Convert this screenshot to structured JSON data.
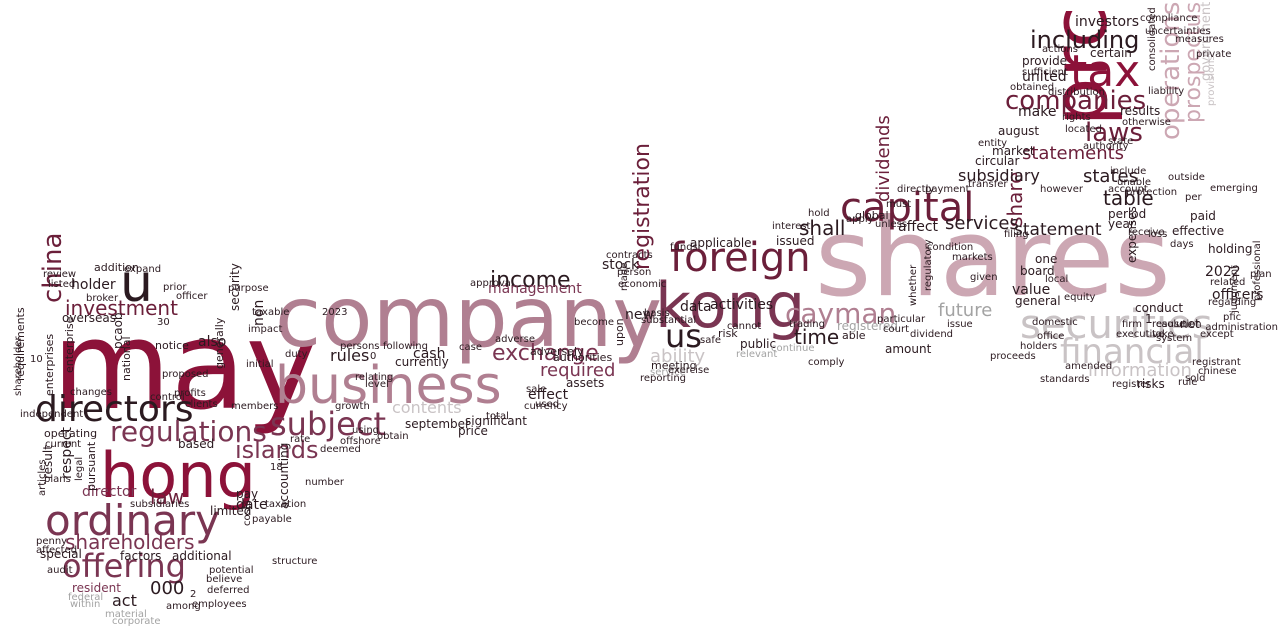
{
  "palette": {
    "dark": "#8c1239",
    "maroon": "#6b1f3a",
    "plum": "#7a3552",
    "mauve": "#b07f91",
    "rose": "#cca7b3",
    "gray": "#a3a3a3",
    "silver": "#c9c3c5",
    "ink": "#2b1a20"
  },
  "words": [
    {
      "text": "may",
      "color": "dark"
    },
    {
      "text": "shares",
      "color": "rose"
    },
    {
      "text": "company",
      "color": "mauve"
    },
    {
      "text": "business",
      "color": "mauve"
    },
    {
      "text": "kong",
      "color": "plum"
    },
    {
      "text": "prc",
      "color": "dark"
    },
    {
      "text": "hong",
      "color": "dark"
    },
    {
      "text": "ordinary",
      "color": "plum"
    },
    {
      "text": "directors",
      "color": "ink"
    },
    {
      "text": "u",
      "color": "ink"
    },
    {
      "text": "tax",
      "color": "dark"
    },
    {
      "text": "capital",
      "color": "maroon"
    },
    {
      "text": "foreign",
      "color": "maroon"
    },
    {
      "text": "securities",
      "color": "silver"
    },
    {
      "text": "financial",
      "color": "silver"
    },
    {
      "text": "companies",
      "color": "maroon"
    },
    {
      "text": "laws",
      "color": "maroon"
    },
    {
      "text": "subject",
      "color": "plum"
    },
    {
      "text": "regulations",
      "color": "plum"
    },
    {
      "text": "offering",
      "color": "plum"
    },
    {
      "text": "us",
      "color": "ink"
    },
    {
      "text": "operations",
      "color": "rose"
    },
    {
      "text": "cayman",
      "color": "mauve"
    },
    {
      "text": "shareholders",
      "color": "plum"
    },
    {
      "text": "china",
      "color": "maroon"
    },
    {
      "text": "islands",
      "color": "plum"
    },
    {
      "text": "registration",
      "color": "maroon"
    },
    {
      "text": "including",
      "color": "ink"
    },
    {
      "text": "prospectus",
      "color": "rose"
    },
    {
      "text": "statements",
      "color": "maroon"
    },
    {
      "text": "exchange",
      "color": "plum"
    },
    {
      "text": "income",
      "color": "ink"
    },
    {
      "text": "investment",
      "color": "maroon"
    },
    {
      "text": "share",
      "color": "maroon"
    },
    {
      "text": "dividends",
      "color": "maroon"
    },
    {
      "text": "information",
      "color": "silver"
    },
    {
      "text": "ability",
      "color": "silver"
    },
    {
      "text": "statement",
      "color": "ink"
    },
    {
      "text": "law",
      "color": "maroon"
    },
    {
      "text": "states",
      "color": "ink"
    },
    {
      "text": "time",
      "color": "ink"
    },
    {
      "text": "future",
      "color": "gray"
    },
    {
      "text": "table",
      "color": "ink"
    },
    {
      "text": "shall",
      "color": "ink"
    },
    {
      "text": "services",
      "color": "ink"
    },
    {
      "text": "subsidiary",
      "color": "ink"
    },
    {
      "text": "management",
      "color": "plum"
    },
    {
      "text": "required",
      "color": "plum"
    },
    {
      "text": "contents",
      "color": "silver"
    },
    {
      "text": "act",
      "color": "ink"
    },
    {
      "text": "000",
      "color": "ink"
    },
    {
      "text": "director",
      "color": "plum"
    },
    {
      "text": "rules",
      "color": "ink"
    },
    {
      "text": "investors",
      "color": "ink"
    },
    {
      "text": "united",
      "color": "ink"
    },
    {
      "text": "make",
      "color": "ink"
    },
    {
      "text": "results",
      "color": "ink"
    },
    {
      "text": "market",
      "color": "ink"
    },
    {
      "text": "august",
      "color": "ink"
    },
    {
      "text": "circular",
      "color": "ink"
    },
    {
      "text": "provide",
      "color": "ink"
    },
    {
      "text": "certain",
      "color": "ink"
    },
    {
      "text": "government",
      "color": "silver"
    },
    {
      "text": "officers",
      "color": "ink"
    },
    {
      "text": "2022",
      "color": "ink"
    },
    {
      "text": "holding",
      "color": "ink"
    },
    {
      "text": "related",
      "color": "ink"
    },
    {
      "text": "regarding",
      "color": "ink"
    },
    {
      "text": "effective",
      "color": "ink"
    },
    {
      "text": "paid",
      "color": "ink"
    },
    {
      "text": "per",
      "color": "ink"
    },
    {
      "text": "period",
      "color": "ink"
    },
    {
      "text": "year",
      "color": "ink"
    },
    {
      "text": "conduct",
      "color": "ink"
    },
    {
      "text": "board",
      "color": "ink"
    },
    {
      "text": "general",
      "color": "ink"
    },
    {
      "text": "value",
      "color": "ink"
    },
    {
      "text": "one",
      "color": "ink"
    },
    {
      "text": "amount",
      "color": "ink"
    },
    {
      "text": "affect",
      "color": "ink"
    },
    {
      "text": "applicable",
      "color": "ink"
    },
    {
      "text": "activities",
      "color": "ink"
    },
    {
      "text": "data",
      "color": "ink"
    },
    {
      "text": "issued",
      "color": "ink"
    },
    {
      "text": "public",
      "color": "ink"
    },
    {
      "text": "registered",
      "color": "gray"
    },
    {
      "text": "new",
      "color": "ink"
    },
    {
      "text": "stock",
      "color": "ink"
    },
    {
      "text": "effect",
      "color": "ink"
    },
    {
      "text": "assets",
      "color": "ink"
    },
    {
      "text": "cash",
      "color": "ink"
    },
    {
      "text": "currently",
      "color": "ink"
    },
    {
      "text": "price",
      "color": "ink"
    },
    {
      "text": "significant",
      "color": "ink"
    },
    {
      "text": "september",
      "color": "ink"
    },
    {
      "text": "offshore",
      "color": "ink"
    },
    {
      "text": "deemed",
      "color": "ink"
    },
    {
      "text": "growth",
      "color": "ink"
    },
    {
      "text": "accounting",
      "color": "ink"
    },
    {
      "text": "taxable",
      "color": "ink"
    },
    {
      "text": "non",
      "color": "ink"
    },
    {
      "text": "security",
      "color": "ink"
    },
    {
      "text": "pay",
      "color": "ink"
    },
    {
      "text": "date",
      "color": "ink"
    },
    {
      "text": "limited",
      "color": "ink"
    },
    {
      "text": "based",
      "color": "ink"
    },
    {
      "text": "additional",
      "color": "ink"
    },
    {
      "text": "factors",
      "color": "ink"
    },
    {
      "text": "special",
      "color": "ink"
    },
    {
      "text": "resident",
      "color": "plum"
    },
    {
      "text": "federal",
      "color": "gray"
    },
    {
      "text": "within",
      "color": "gray"
    },
    {
      "text": "material",
      "color": "gray"
    },
    {
      "text": "operating",
      "color": "ink"
    },
    {
      "text": "current",
      "color": "ink"
    },
    {
      "text": "holder",
      "color": "ink"
    },
    {
      "text": "overseas",
      "color": "ink"
    },
    {
      "text": "requirements",
      "color": "ink"
    },
    {
      "text": "enterprises",
      "color": "ink"
    },
    {
      "text": "respect",
      "color": "ink"
    },
    {
      "text": "result",
      "color": "ink"
    },
    {
      "text": "pursuant",
      "color": "ink"
    },
    {
      "text": "legal",
      "color": "ink"
    },
    {
      "text": "pcaob",
      "color": "ink"
    },
    {
      "text": "national",
      "color": "ink"
    },
    {
      "text": "also",
      "color": "ink"
    },
    {
      "text": "notice",
      "color": "ink"
    },
    {
      "text": "generally",
      "color": "ink"
    },
    {
      "text": "addition",
      "color": "ink"
    },
    {
      "text": "broker",
      "color": "ink"
    },
    {
      "text": "control",
      "color": "ink"
    },
    {
      "text": "enterprise",
      "color": "ink"
    },
    {
      "text": "articles",
      "color": "ink"
    },
    {
      "text": "30",
      "color": "ink"
    },
    {
      "text": "net",
      "color": "ink"
    },
    {
      "text": "pfic",
      "color": "ink"
    },
    {
      "text": "risks",
      "color": "ink"
    },
    {
      "text": "executive",
      "color": "ink"
    },
    {
      "text": "adversely",
      "color": "ink"
    },
    {
      "text": "authorities",
      "color": "ink"
    },
    {
      "text": "person",
      "color": "ink"
    },
    {
      "text": "upon",
      "color": "ink"
    },
    {
      "text": "made",
      "color": "ink"
    },
    {
      "text": "risk",
      "color": "ink"
    },
    {
      "text": "safe",
      "color": "ink"
    },
    {
      "text": "meeting",
      "color": "ink"
    },
    {
      "text": "service",
      "color": "gray"
    },
    {
      "text": "relevant",
      "color": "gray"
    },
    {
      "text": "continue",
      "color": "gray"
    },
    {
      "text": "able",
      "color": "ink"
    },
    {
      "text": "comply",
      "color": "ink"
    },
    {
      "text": "trading",
      "color": "ink"
    },
    {
      "text": "court",
      "color": "ink"
    },
    {
      "text": "interest",
      "color": "ink"
    },
    {
      "text": "global",
      "color": "ink"
    },
    {
      "text": "must",
      "color": "ink"
    },
    {
      "text": "whether",
      "color": "ink"
    },
    {
      "text": "regulatory",
      "color": "ink"
    },
    {
      "text": "markets",
      "color": "ink"
    },
    {
      "text": "payment",
      "color": "ink"
    },
    {
      "text": "transfer",
      "color": "ink"
    },
    {
      "text": "however",
      "color": "ink"
    },
    {
      "text": "rate",
      "color": "ink"
    },
    {
      "text": "18",
      "color": "ink"
    },
    {
      "text": "costs",
      "color": "ink"
    },
    {
      "text": "impact",
      "color": "ink"
    },
    {
      "text": "members",
      "color": "ink"
    },
    {
      "text": "clients",
      "color": "ink"
    },
    {
      "text": "independent",
      "color": "ink"
    },
    {
      "text": "review",
      "color": "ink"
    },
    {
      "text": "shareholder",
      "color": "ink"
    },
    {
      "text": "actions",
      "color": "ink"
    },
    {
      "text": "otherwise",
      "color": "ink"
    },
    {
      "text": "state",
      "color": "ink"
    },
    {
      "text": "rights",
      "color": "ink"
    },
    {
      "text": "provisions",
      "color": "silver"
    },
    {
      "text": "obtain",
      "color": "ink"
    },
    {
      "text": "currency",
      "color": "ink"
    },
    {
      "text": "total",
      "color": "ink"
    },
    {
      "text": "reporting",
      "color": "ink"
    },
    {
      "text": "persons",
      "color": "ink"
    },
    {
      "text": "number",
      "color": "ink"
    },
    {
      "text": "structure",
      "color": "ink"
    },
    {
      "text": "payable",
      "color": "ink"
    },
    {
      "text": "potential",
      "color": "ink"
    },
    {
      "text": "believe",
      "color": "ink"
    },
    {
      "text": "employees",
      "color": "ink"
    },
    {
      "text": "among",
      "color": "ink"
    },
    {
      "text": "corporate",
      "color": "gray"
    },
    {
      "text": "audit",
      "color": "ink"
    },
    {
      "text": "plans",
      "color": "ink"
    },
    {
      "text": "penny",
      "color": "ink"
    },
    {
      "text": "affected",
      "color": "ink"
    },
    {
      "text": "judgment",
      "color": "ink"
    },
    {
      "text": "administration",
      "color": "ink"
    },
    {
      "text": "professional",
      "color": "ink"
    },
    {
      "text": "registrant",
      "color": "ink"
    },
    {
      "text": "chinese",
      "color": "ink"
    },
    {
      "text": "sold",
      "color": "ink"
    },
    {
      "text": "resolution",
      "color": "ink"
    },
    {
      "text": "except",
      "color": "ink"
    },
    {
      "text": "expenses",
      "color": "ink"
    },
    {
      "text": "1",
      "color": "ink"
    },
    {
      "text": "plan",
      "color": "ink"
    },
    {
      "text": "0",
      "color": "ink"
    },
    {
      "text": "2",
      "color": "ink"
    },
    {
      "text": "10",
      "color": "ink"
    },
    {
      "text": "outside",
      "color": "ink"
    },
    {
      "text": "emerging",
      "color": "ink"
    },
    {
      "text": "private",
      "color": "ink"
    },
    {
      "text": "measures",
      "color": "ink"
    },
    {
      "text": "uncertainties",
      "color": "ink"
    },
    {
      "text": "compliance",
      "color": "ink"
    },
    {
      "text": "authority",
      "color": "ink"
    },
    {
      "text": "include",
      "color": "ink"
    },
    {
      "text": "unable",
      "color": "ink"
    },
    {
      "text": "receive",
      "color": "ink"
    },
    {
      "text": "loss",
      "color": "ink"
    },
    {
      "text": "account",
      "color": "ink"
    },
    {
      "text": "protection",
      "color": "ink"
    },
    {
      "text": "condition",
      "color": "ink"
    },
    {
      "text": "given",
      "color": "ink"
    },
    {
      "text": "filing",
      "color": "ink"
    },
    {
      "text": "located",
      "color": "ink"
    },
    {
      "text": "sufficient",
      "color": "ink"
    },
    {
      "text": "distribution",
      "color": "ink"
    },
    {
      "text": "obtained",
      "color": "ink"
    },
    {
      "text": "liability",
      "color": "ink"
    },
    {
      "text": "unless",
      "color": "ink"
    },
    {
      "text": "directly",
      "color": "ink"
    },
    {
      "text": "entity",
      "color": "ink"
    },
    {
      "text": "consolidated",
      "color": "ink"
    },
    {
      "text": "apply",
      "color": "ink"
    },
    {
      "text": "hold",
      "color": "ink"
    },
    {
      "text": "subsidiaries",
      "color": "ink"
    },
    {
      "text": "funds",
      "color": "ink"
    },
    {
      "text": "economic",
      "color": "ink"
    },
    {
      "text": "basis",
      "color": "ink"
    },
    {
      "text": "substantial",
      "color": "ink"
    },
    {
      "text": "cannot",
      "color": "ink"
    },
    {
      "text": "approval",
      "color": "ink"
    },
    {
      "text": "contracts",
      "color": "ink"
    },
    {
      "text": "following",
      "color": "ink"
    },
    {
      "text": "used",
      "color": "ink"
    },
    {
      "text": "case",
      "color": "ink"
    },
    {
      "text": "days",
      "color": "ink"
    },
    {
      "text": "local",
      "color": "ink"
    },
    {
      "text": "equity",
      "color": "ink"
    },
    {
      "text": "cause",
      "color": "ink"
    },
    {
      "text": "take",
      "color": "ink"
    },
    {
      "text": "issue",
      "color": "ink"
    },
    {
      "text": "register",
      "color": "ink"
    },
    {
      "text": "standards",
      "color": "ink"
    },
    {
      "text": "amended",
      "color": "ink"
    },
    {
      "text": "firm",
      "color": "ink"
    },
    {
      "text": "system",
      "color": "ink"
    },
    {
      "text": "rule",
      "color": "ink"
    },
    {
      "text": "exercise",
      "color": "ink"
    },
    {
      "text": "domestic",
      "color": "ink"
    },
    {
      "text": "office",
      "color": "ink"
    },
    {
      "text": "holders",
      "color": "ink"
    },
    {
      "text": "proceeds",
      "color": "ink"
    },
    {
      "text": "dividend",
      "color": "ink"
    },
    {
      "text": "officer",
      "color": "ink"
    },
    {
      "text": "listed",
      "color": "ink"
    },
    {
      "text": "profits",
      "color": "ink"
    },
    {
      "text": "changes",
      "color": "ink"
    },
    {
      "text": "expand",
      "color": "ink"
    },
    {
      "text": "deferred",
      "color": "ink"
    },
    {
      "text": "initial",
      "color": "ink"
    },
    {
      "text": "taxation",
      "color": "ink"
    },
    {
      "text": "proposed",
      "color": "ink"
    },
    {
      "text": "duty",
      "color": "ink"
    },
    {
      "text": "purpose",
      "color": "ink"
    },
    {
      "text": "relating",
      "color": "ink"
    },
    {
      "text": "level",
      "color": "ink"
    },
    {
      "text": "using",
      "color": "ink"
    },
    {
      "text": "prior",
      "color": "ink"
    },
    {
      "text": "2023",
      "color": "ink"
    },
    {
      "text": "sale",
      "color": "ink"
    },
    {
      "text": "adverse",
      "color": "ink"
    },
    {
      "text": "become",
      "color": "ink"
    },
    {
      "text": "particular",
      "color": "ink"
    }
  ]
}
